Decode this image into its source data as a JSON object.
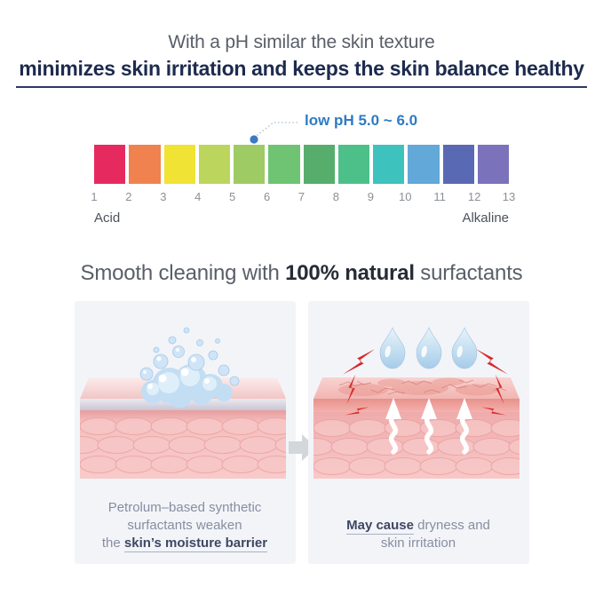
{
  "header": {
    "line1": "With a pH similar the skin texture",
    "line2": "minimizes skin irritation and keeps the skin balance healthy"
  },
  "ph_scale": {
    "callout_label": "low pH 5.0 ~ 6.0",
    "callout_color": "#2e7bc4",
    "dot_icon": "ph-marker-dot-icon",
    "colors": [
      "#e62a5f",
      "#f0824f",
      "#f0e333",
      "#bcd55c",
      "#9ecb64",
      "#6ec472",
      "#57ad6b",
      "#4dc08a",
      "#3ec2bd",
      "#62a8d9",
      "#5a69b3",
      "#7a72bb"
    ],
    "numbers": [
      "1",
      "2",
      "3",
      "4",
      "5",
      "6",
      "7",
      "8",
      "9",
      "10",
      "11",
      "12",
      "13"
    ],
    "acid_label": "Acid",
    "alkaline_label": "Alkaline"
  },
  "section2": {
    "title_prefix": "Smooth cleaning with ",
    "title_emphasis": "100% natural",
    "title_suffix": " surfactants"
  },
  "panels": {
    "left": {
      "illustration": "foam-bubbles-on-skin",
      "caption_line1": "Petrolum–based synthetic",
      "caption_line2": "surfactants weaken",
      "caption_line3_prefix": "the ",
      "caption_line3_emphasis": "skin’s moisture barrier"
    },
    "right": {
      "illustration": "irritated-skin-with-water-drops",
      "caption_emphasis": "May cause",
      "caption_line1_suffix": " dryness and",
      "caption_line2": "skin irritation"
    }
  },
  "icons": {
    "foam": "foam-bubbles-icon",
    "drops": "water-drops-icon",
    "bolts": "irritation-bolt-icon",
    "steam": "moisture-escape-arrow-icon",
    "transition": "transition-arrow-icon"
  },
  "colors": {
    "accent_navy": "#1d2b4e",
    "heading_gray": "#595e68",
    "panel_bg": "#f3f4f8",
    "skin_pink": "#f5bfbf",
    "foam_blue": "#c3def3",
    "drop_blue": "#a6cce9",
    "bolt_red": "#d62a2e",
    "arrow_gray": "#d3d6da"
  }
}
